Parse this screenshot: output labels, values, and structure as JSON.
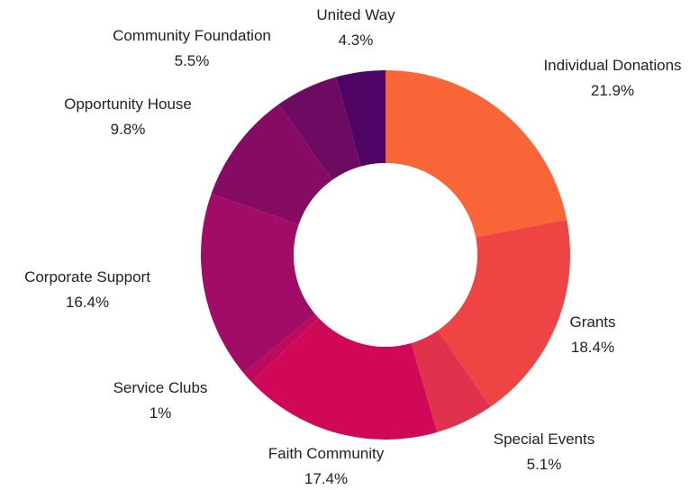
{
  "chart_data": {
    "type": "pie",
    "variant": "donut",
    "title": "",
    "slices": [
      {
        "label": "Individual Donations",
        "value": 21.9,
        "value_label": "21.9%",
        "color": "#f96537"
      },
      {
        "label": "Grants",
        "value": 18.4,
        "value_label": "18.4%",
        "color": "#ef4443"
      },
      {
        "label": "Special Events",
        "value": 5.1,
        "value_label": "5.1%",
        "color": "#e0314d"
      },
      {
        "label": "Faith Community",
        "value": 17.4,
        "value_label": "17.4%",
        "color": "#d10857"
      },
      {
        "label": "Service Clubs",
        "value": 1,
        "value_label": "1%",
        "color": "#bd0a5d"
      },
      {
        "label": "Corporate Support",
        "value": 16.4,
        "value_label": "16.4%",
        "color": "#a00c66"
      },
      {
        "label": "Opportunity House",
        "value": 9.8,
        "value_label": "9.8%",
        "color": "#860c63"
      },
      {
        "label": "Community Foundation",
        "value": 5.5,
        "value_label": "5.5%",
        "color": "#6d0a62"
      },
      {
        "label": "United Way",
        "value": 4.3,
        "value_label": "4.3%",
        "color": "#4e0464"
      }
    ],
    "legend": "none",
    "labels": "outside"
  }
}
